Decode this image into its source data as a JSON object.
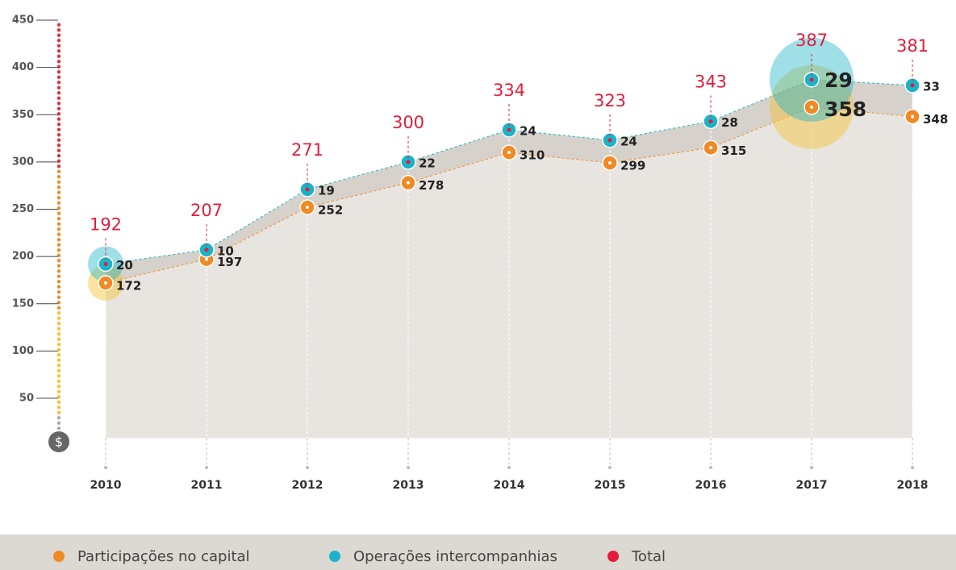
{
  "chart_data": {
    "type": "stacked-area-line",
    "categories": [
      "2010",
      "2011",
      "2012",
      "2013",
      "2014",
      "2015",
      "2016",
      "2017",
      "2018"
    ],
    "series": [
      {
        "name": "Participações no capital",
        "color": "#f08a24",
        "values": [
          172,
          197,
          252,
          278,
          310,
          299,
          315,
          358,
          348
        ]
      },
      {
        "name": "Operações intercompanhias",
        "color": "#1bb3c8",
        "values": [
          20,
          10,
          19,
          22,
          24,
          24,
          28,
          29,
          33
        ]
      },
      {
        "name": "Total",
        "color": "#e31d3b",
        "values": [
          192,
          207,
          271,
          300,
          334,
          323,
          343,
          387,
          381
        ]
      }
    ],
    "ylim": [
      8,
      450
    ],
    "yticks": [
      50,
      100,
      150,
      200,
      250,
      300,
      350,
      400,
      450
    ],
    "highlight": [
      0,
      7
    ]
  }
}
